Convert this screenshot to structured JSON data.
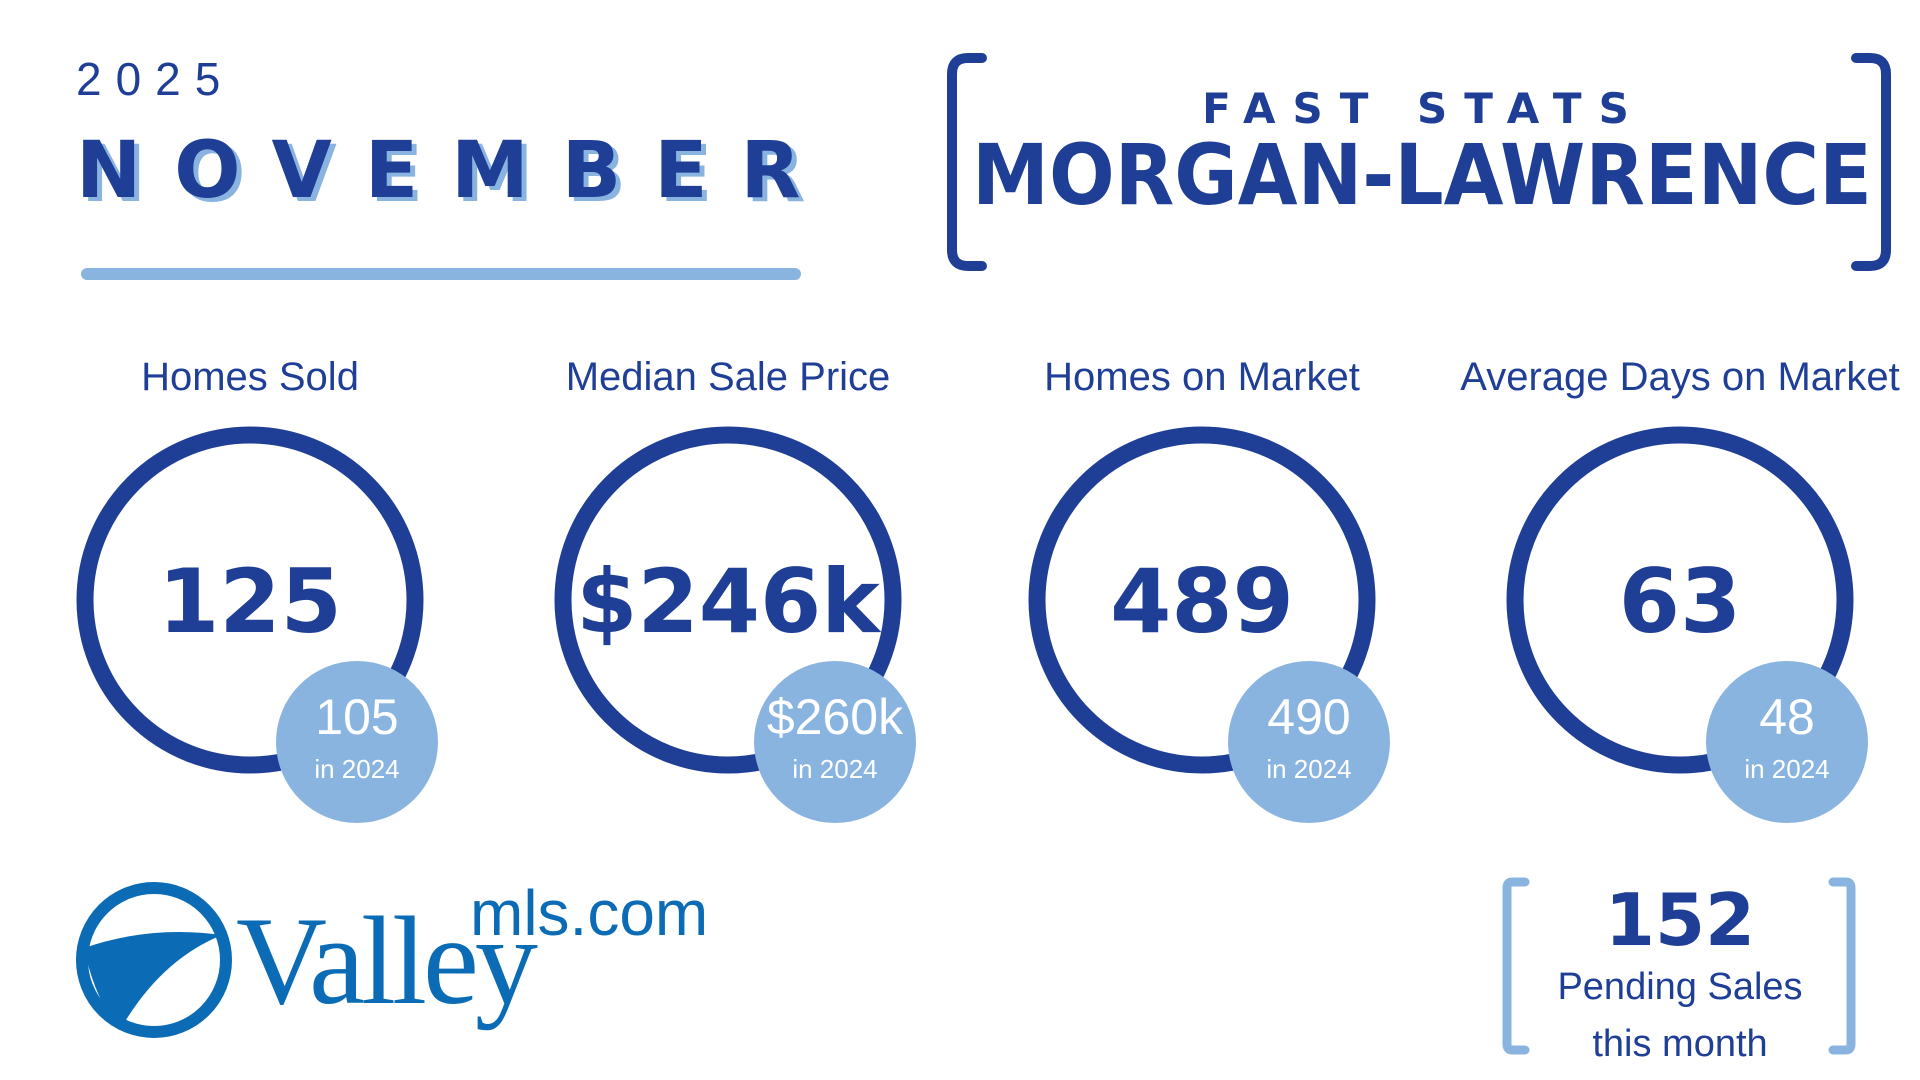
{
  "header": {
    "year": "2025",
    "month": "NOVEMBER",
    "subtitle": "FAST STATS",
    "area": "MORGAN-LAWRENCE"
  },
  "stats": [
    {
      "label": "Homes Sold",
      "value": "125",
      "prior": "105",
      "prior_note": "in 2024"
    },
    {
      "label": "Median Sale Price",
      "value": "$246k",
      "prior": "$260k",
      "prior_note": "in 2024"
    },
    {
      "label": "Homes on Market",
      "value": "489",
      "prior": "490",
      "prior_note": "in 2024"
    },
    {
      "label": "Average Days on Market",
      "value": "63",
      "prior": "48",
      "prior_note": "in 2024"
    }
  ],
  "logo": {
    "main": "Valley",
    "suffix": "mls.com"
  },
  "pending": {
    "value": "152",
    "line1": "Pending Sales",
    "line2": "this month"
  }
}
